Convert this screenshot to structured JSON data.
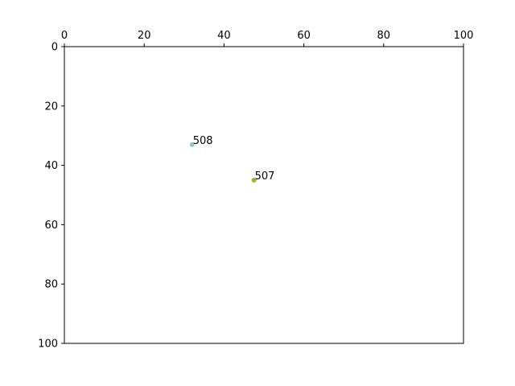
{
  "chart_data": {
    "type": "scatter",
    "title": "",
    "xlabel": "",
    "ylabel": "",
    "xlim": [
      0,
      100
    ],
    "ylim": [
      0,
      100
    ],
    "x_axis_position": "top",
    "y_axis_inverted": true,
    "grid": false,
    "x_ticks": [
      0,
      20,
      40,
      60,
      80,
      100
    ],
    "y_ticks": [
      0,
      20,
      40,
      60,
      80,
      100
    ],
    "points": [
      {
        "label": "508",
        "x": 32,
        "y": 33,
        "color": "#8ec9cc"
      },
      {
        "label": "507",
        "x": 47.5,
        "y": 45,
        "color": "#8fbf1a"
      }
    ]
  }
}
